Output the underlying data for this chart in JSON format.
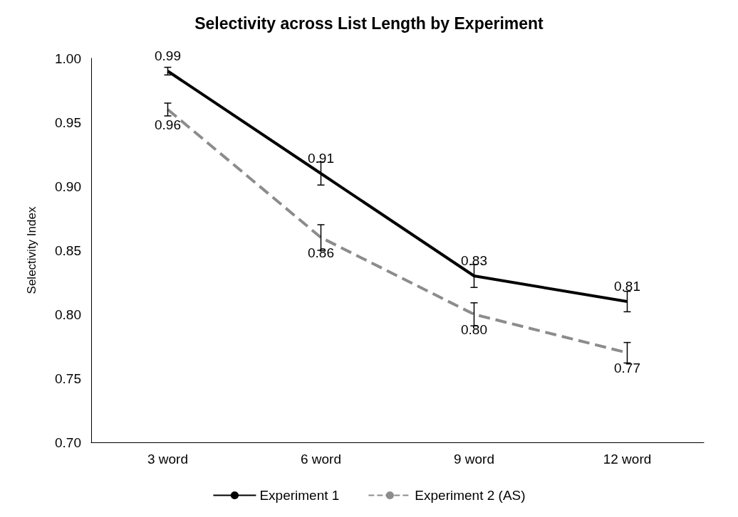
{
  "chart_data": {
    "type": "line",
    "title": "Selectivity across List Length by Experiment",
    "ylabel": "Selectivity Index",
    "categories": [
      "3 word",
      "6 word",
      "9 word",
      "12 word"
    ],
    "series": [
      {
        "name": "Experiment 1",
        "color": "#000000",
        "line_style": "solid",
        "values": [
          0.99,
          0.91,
          0.83,
          0.81
        ],
        "value_labels": [
          "0.99",
          "0.91",
          "0.83",
          "0.81"
        ],
        "errors": [
          0.003,
          0.009,
          0.009,
          0.008
        ]
      },
      {
        "name": "Experiment 2 (AS)",
        "color": "#8c8c8c",
        "line_style": "dashed",
        "values": [
          0.96,
          0.86,
          0.8,
          0.77
        ],
        "value_labels": [
          "0.96",
          "0.86",
          "0.80",
          "0.77"
        ],
        "errors": [
          0.005,
          0.01,
          0.009,
          0.008
        ]
      }
    ],
    "ylim": [
      0.7,
      1.0
    ],
    "yticks": [
      {
        "value": 0.7,
        "label": "0.70"
      },
      0.75,
      {
        "value": 0.8,
        "label": "0.80"
      },
      0.85,
      {
        "value": 0.9,
        "label": "0.90"
      },
      0.95,
      {
        "value": 1.0,
        "label": "1.00"
      }
    ],
    "grid": false,
    "legend": "bottom",
    "marker": "none"
  }
}
